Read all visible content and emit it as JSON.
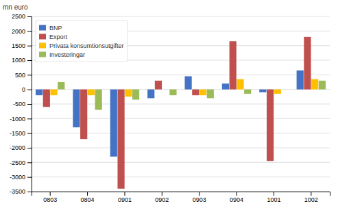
{
  "chart_data": {
    "type": "bar",
    "ylabel": "mn euro",
    "categories": [
      "0803",
      "0804",
      "0901",
      "0902",
      "0903",
      "0904",
      "1001",
      "1002"
    ],
    "series": [
      {
        "name": "BNP",
        "color": "#4472C4",
        "values": [
          -200,
          -1300,
          -2300,
          -300,
          450,
          200,
          -100,
          650
        ]
      },
      {
        "name": "Export",
        "color": "#C0504D",
        "values": [
          -600,
          -1700,
          -3400,
          300,
          -200,
          1650,
          -2450,
          1800
        ]
      },
      {
        "name": "Privata konsumtionsutgifter",
        "color": "#FFC000",
        "values": [
          -200,
          -200,
          -250,
          0,
          -200,
          350,
          -150,
          350
        ]
      },
      {
        "name": "Investeringar",
        "color": "#9BBB59",
        "values": [
          250,
          -700,
          -350,
          -200,
          -300,
          -150,
          0,
          300
        ]
      }
    ],
    "ylim": [
      -3500,
      2500
    ],
    "yticks": [
      -3500,
      -3000,
      -2500,
      -2000,
      -1500,
      -1000,
      -500,
      0,
      500,
      1000,
      1500,
      2000,
      2500
    ],
    "grid": true,
    "legend": "upper left"
  }
}
